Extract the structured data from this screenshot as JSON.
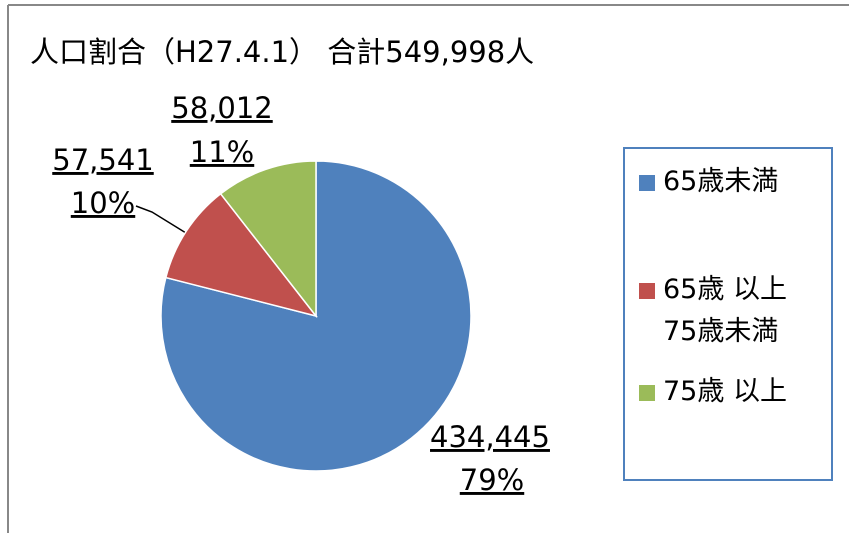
{
  "chart_data": {
    "type": "pie",
    "title": "人口割合（H27.4.1） 合計549,998人",
    "categories": [
      "65歳未満",
      "65歳 以上\n75歳未満",
      "75歳 以上"
    ],
    "values": [
      434445,
      57541,
      58012
    ],
    "value_labels": [
      "434,445",
      "57,541",
      "58,012"
    ],
    "percentages": [
      79,
      10,
      11
    ],
    "percentage_labels": [
      "79%",
      "10%",
      "11%"
    ],
    "colors": [
      "#4f81bd",
      "#c0504d",
      "#9bbb59"
    ],
    "legend": "right"
  }
}
